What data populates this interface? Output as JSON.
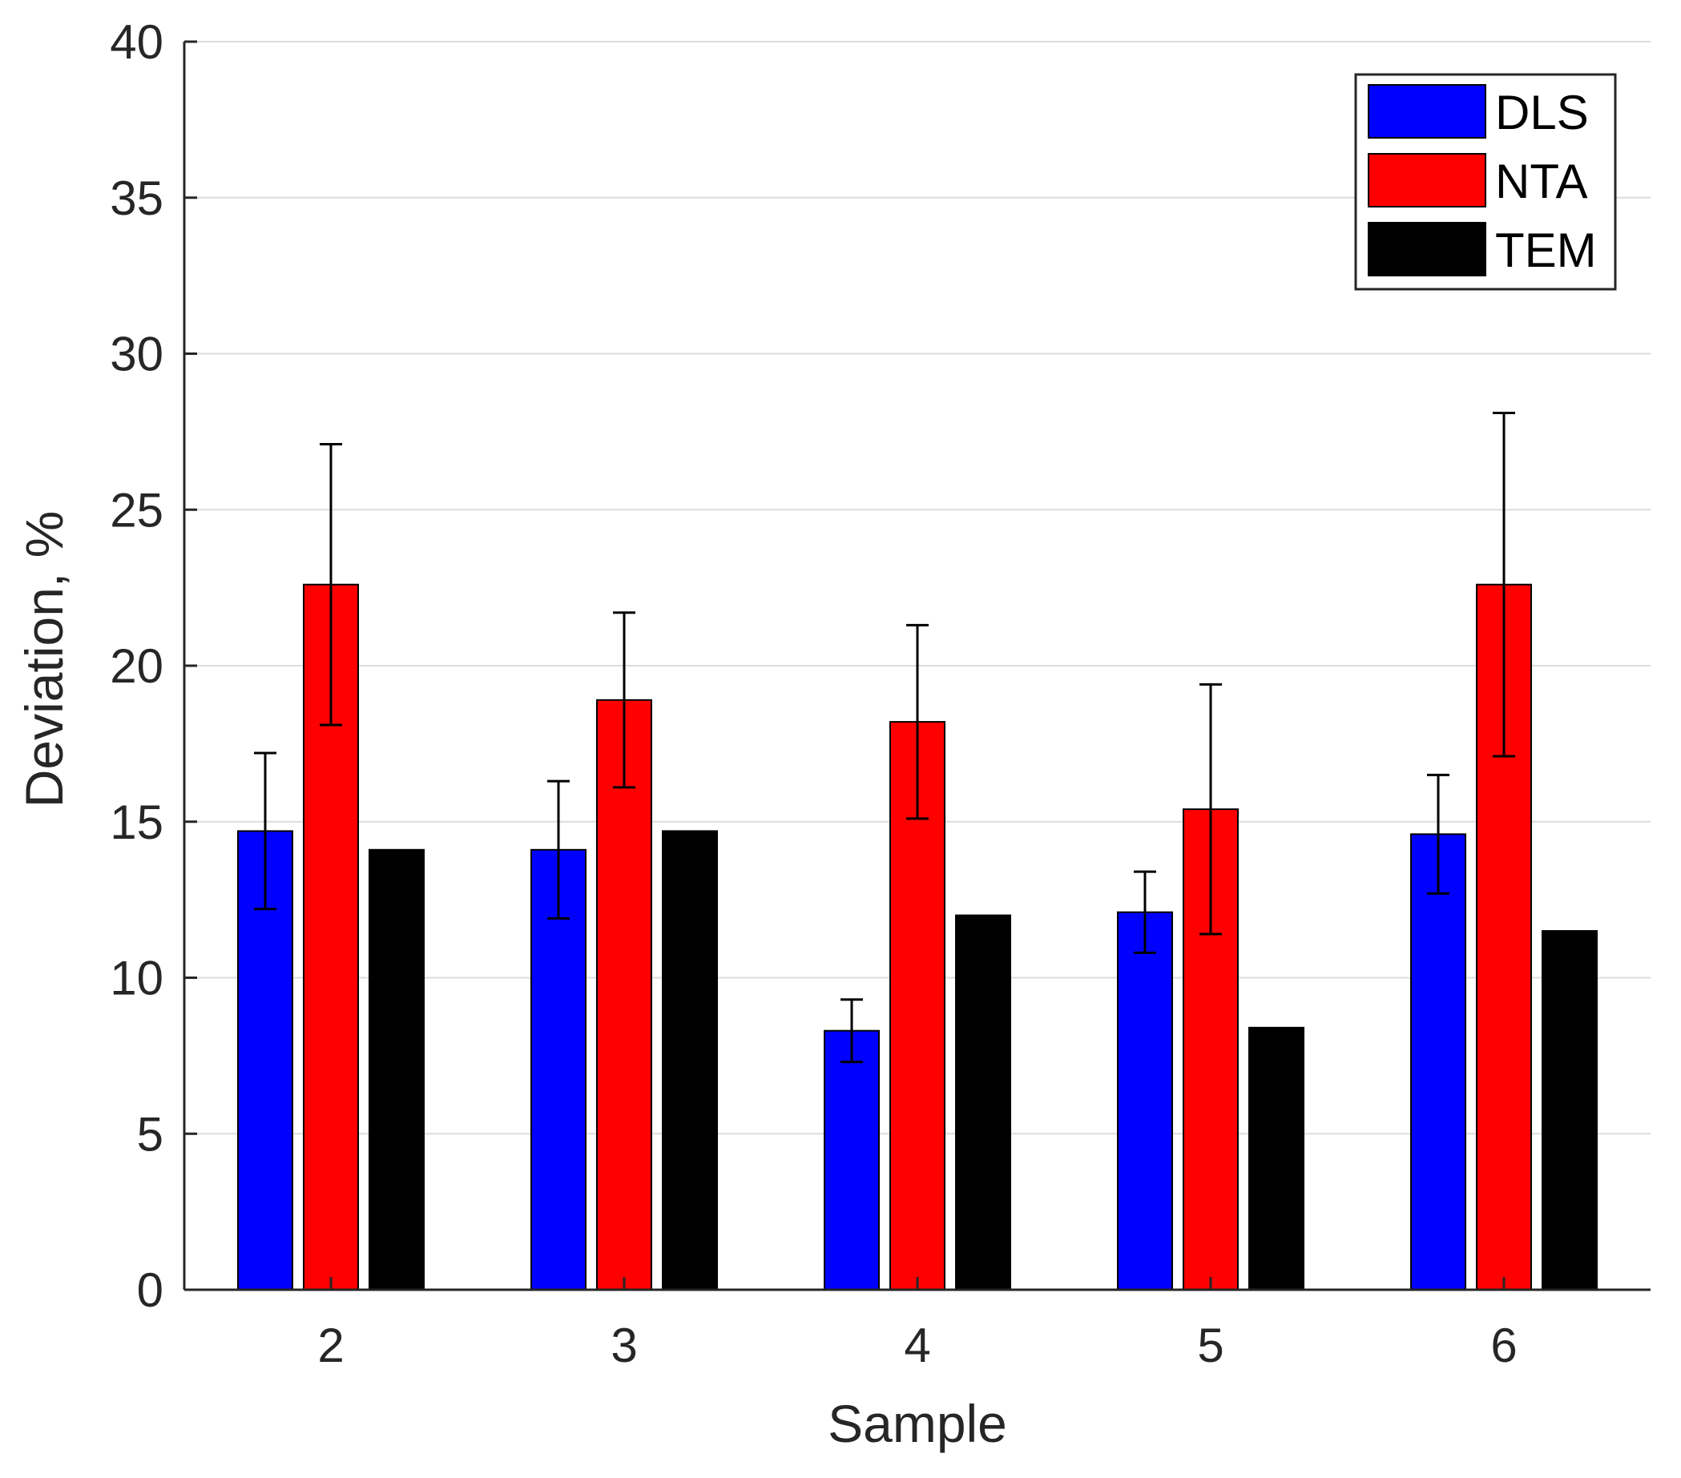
{
  "chart_data": {
    "type": "bar",
    "title": "",
    "xlabel": "Sample",
    "ylabel": "Deviation, %",
    "categories": [
      "2",
      "3",
      "4",
      "5",
      "6"
    ],
    "ylim": [
      0,
      40
    ],
    "yticks": [
      0,
      5,
      10,
      15,
      20,
      25,
      30,
      35,
      40
    ],
    "yticks_labels": [
      "0",
      "5",
      "10",
      "15",
      "20",
      "25",
      "30",
      "35",
      "40"
    ],
    "grid": "y",
    "legend_position": "top-right",
    "series": [
      {
        "name": "DLS",
        "color": "#0000ff",
        "values": [
          14.7,
          14.1,
          8.3,
          12.1,
          14.6
        ],
        "error": [
          2.5,
          2.2,
          1.0,
          1.3,
          1.9
        ]
      },
      {
        "name": "NTA",
        "color": "#ff0000",
        "values": [
          22.6,
          18.9,
          18.2,
          15.4,
          22.6
        ],
        "error": [
          4.5,
          2.8,
          3.1,
          4.0,
          5.5
        ]
      },
      {
        "name": "TEM",
        "color": "#000000",
        "values": [
          14.1,
          14.7,
          12.0,
          8.4,
          11.5
        ],
        "error": null
      }
    ]
  }
}
